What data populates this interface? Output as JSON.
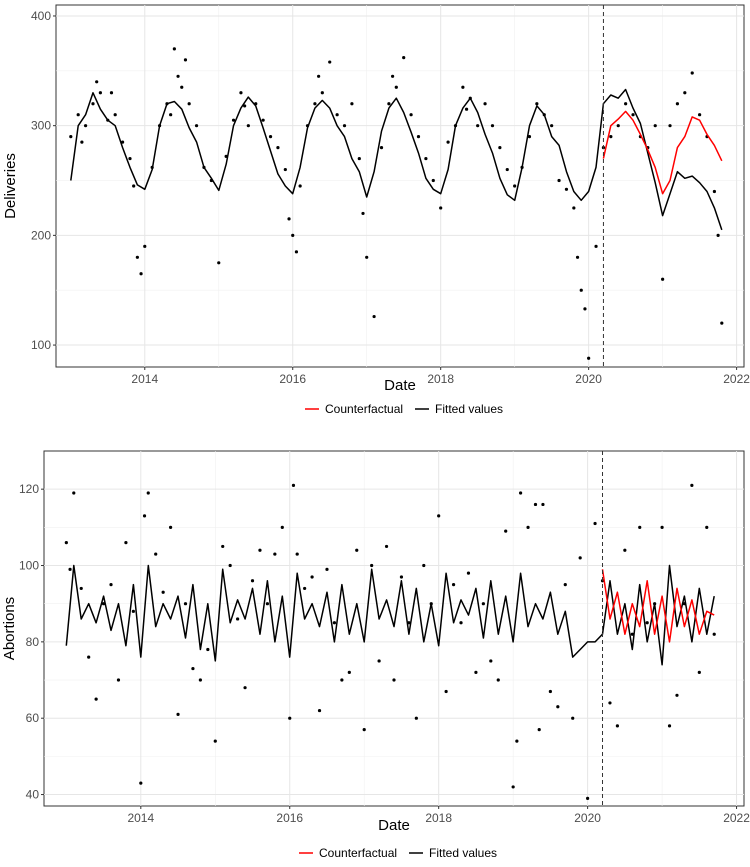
{
  "chart_data": [
    {
      "type": "line",
      "xlabel": "Date",
      "ylabel": "Deliveries",
      "xlim": [
        2012.8,
        2022.1
      ],
      "ylim": [
        80,
        410
      ],
      "x_ticks": [
        "2014",
        "2016",
        "2018",
        "2020",
        "2022"
      ],
      "y_ticks": [
        "100",
        "200",
        "300",
        "400"
      ],
      "grid": true,
      "intervention_line_x": 2020.2,
      "legend": {
        "position": "bottom",
        "entries": [
          "Counterfactual",
          "Fitted values"
        ]
      },
      "colors": {
        "Counterfactual": "#ff0000",
        "Fitted values": "#000000",
        "points": "#000000"
      },
      "series": [
        {
          "name": "Fitted values",
          "x": [
            2013.0,
            2013.1,
            2013.2,
            2013.3,
            2013.4,
            2013.5,
            2013.6,
            2013.7,
            2013.8,
            2013.9,
            2014.0,
            2014.1,
            2014.2,
            2014.3,
            2014.4,
            2014.5,
            2014.6,
            2014.7,
            2014.8,
            2014.9,
            2015.0,
            2015.1,
            2015.2,
            2015.3,
            2015.4,
            2015.5,
            2015.6,
            2015.7,
            2015.8,
            2015.9,
            2016.0,
            2016.1,
            2016.2,
            2016.3,
            2016.4,
            2016.5,
            2016.6,
            2016.7,
            2016.8,
            2016.9,
            2017.0,
            2017.1,
            2017.2,
            2017.3,
            2017.4,
            2017.5,
            2017.6,
            2017.7,
            2017.8,
            2017.9,
            2018.0,
            2018.1,
            2018.2,
            2018.3,
            2018.4,
            2018.5,
            2018.6,
            2018.7,
            2018.8,
            2018.9,
            2019.0,
            2019.1,
            2019.2,
            2019.3,
            2019.4,
            2019.5,
            2019.6,
            2019.7,
            2019.8,
            2019.9,
            2020.0,
            2020.1,
            2020.2,
            2020.3,
            2020.4,
            2020.5,
            2020.6,
            2020.7,
            2020.8,
            2020.9,
            2021.0,
            2021.1,
            2021.2,
            2021.3,
            2021.4,
            2021.5,
            2021.6,
            2021.7,
            2021.8
          ],
          "values": [
            250,
            300,
            310,
            330,
            315,
            305,
            300,
            280,
            262,
            246,
            242,
            260,
            300,
            320,
            322,
            315,
            298,
            285,
            262,
            252,
            241,
            265,
            300,
            316,
            326,
            318,
            298,
            277,
            256,
            245,
            238,
            262,
            298,
            316,
            323,
            316,
            300,
            290,
            270,
            258,
            235,
            258,
            295,
            316,
            325,
            312,
            294,
            275,
            252,
            242,
            238,
            260,
            300,
            316,
            325,
            312,
            292,
            275,
            252,
            237,
            232,
            262,
            300,
            318,
            310,
            290,
            282,
            258,
            240,
            232,
            240,
            262,
            320,
            328,
            325,
            333,
            316,
            302,
            275,
            248,
            218,
            238,
            258,
            252,
            254,
            248,
            240,
            225,
            205
          ]
        },
        {
          "name": "Counterfactual",
          "x": [
            2020.2,
            2020.3,
            2020.4,
            2020.5,
            2020.6,
            2020.7,
            2020.8,
            2020.9,
            2021.0,
            2021.1,
            2021.2,
            2021.3,
            2021.4,
            2021.5,
            2021.6,
            2021.7,
            2021.8
          ],
          "values": [
            270,
            300,
            306,
            313,
            305,
            292,
            278,
            262,
            238,
            250,
            280,
            290,
            308,
            305,
            292,
            282,
            268
          ]
        }
      ],
      "points": {
        "x": [
          2013.0,
          2013.1,
          2013.15,
          2013.2,
          2013.3,
          2013.35,
          2013.4,
          2013.5,
          2013.55,
          2013.6,
          2013.7,
          2013.8,
          2013.85,
          2013.9,
          2013.95,
          2014.0,
          2014.1,
          2014.2,
          2014.3,
          2014.35,
          2014.4,
          2014.45,
          2014.5,
          2014.55,
          2014.6,
          2014.7,
          2014.8,
          2014.9,
          2015.0,
          2015.1,
          2015.2,
          2015.3,
          2015.35,
          2015.4,
          2015.5,
          2015.6,
          2015.7,
          2015.8,
          2015.9,
          2015.95,
          2016.0,
          2016.05,
          2016.1,
          2016.2,
          2016.3,
          2016.35,
          2016.4,
          2016.5,
          2016.6,
          2016.7,
          2016.8,
          2016.9,
          2016.95,
          2017.0,
          2017.1,
          2017.2,
          2017.3,
          2017.35,
          2017.4,
          2017.5,
          2017.6,
          2017.7,
          2017.8,
          2017.9,
          2018.0,
          2018.1,
          2018.2,
          2018.3,
          2018.35,
          2018.4,
          2018.5,
          2018.6,
          2018.7,
          2018.8,
          2018.9,
          2019.0,
          2019.1,
          2019.2,
          2019.3,
          2019.4,
          2019.5,
          2019.6,
          2019.7,
          2019.8,
          2019.85,
          2019.9,
          2019.95,
          2020.0,
          2020.1,
          2020.2,
          2020.3,
          2020.4,
          2020.5,
          2020.6,
          2020.7,
          2020.8,
          2020.9,
          2021.0,
          2021.1,
          2021.2,
          2021.3,
          2021.4,
          2021.5,
          2021.6,
          2021.7,
          2021.75,
          2021.8
        ],
        "y": [
          290,
          310,
          285,
          300,
          320,
          340,
          330,
          305,
          330,
          310,
          285,
          270,
          245,
          180,
          165,
          190,
          262,
          300,
          320,
          310,
          370,
          345,
          335,
          360,
          320,
          300,
          262,
          250,
          175,
          272,
          305,
          330,
          318,
          300,
          320,
          305,
          290,
          280,
          260,
          215,
          200,
          185,
          245,
          300,
          320,
          345,
          330,
          358,
          310,
          300,
          320,
          270,
          220,
          180,
          126,
          280,
          320,
          345,
          335,
          362,
          310,
          290,
          270,
          250,
          225,
          285,
          300,
          335,
          315,
          325,
          300,
          320,
          300,
          280,
          260,
          245,
          262,
          290,
          320,
          310,
          300,
          250,
          242,
          225,
          180,
          150,
          133,
          88,
          190,
          280,
          290,
          300,
          320,
          310,
          290,
          280,
          300,
          160,
          300,
          320,
          330,
          348,
          310,
          290,
          240,
          200,
          120
        ]
      }
    },
    {
      "type": "line",
      "xlabel": "Date",
      "ylabel": "Abortions",
      "xlim": [
        2012.7,
        2022.1
      ],
      "ylim": [
        37,
        130
      ],
      "x_ticks": [
        "2014",
        "2016",
        "2018",
        "2020",
        "2022"
      ],
      "y_ticks": [
        "40",
        "60",
        "80",
        "100",
        "120"
      ],
      "grid": true,
      "intervention_line_x": 2020.2,
      "legend": {
        "position": "bottom",
        "entries": [
          "Counterfactual",
          "Fitted values"
        ]
      },
      "colors": {
        "Counterfactual": "#ff0000",
        "Fitted values": "#000000",
        "points": "#000000"
      },
      "series": [
        {
          "name": "Fitted values",
          "x": [
            2013.0,
            2013.1,
            2013.2,
            2013.3,
            2013.4,
            2013.5,
            2013.6,
            2013.7,
            2013.8,
            2013.9,
            2014.0,
            2014.1,
            2014.2,
            2014.3,
            2014.4,
            2014.5,
            2014.6,
            2014.7,
            2014.8,
            2014.9,
            2015.0,
            2015.1,
            2015.2,
            2015.3,
            2015.4,
            2015.5,
            2015.6,
            2015.7,
            2015.8,
            2015.9,
            2016.0,
            2016.1,
            2016.2,
            2016.3,
            2016.4,
            2016.5,
            2016.6,
            2016.7,
            2016.8,
            2016.9,
            2017.0,
            2017.1,
            2017.2,
            2017.3,
            2017.4,
            2017.5,
            2017.6,
            2017.7,
            2017.8,
            2017.9,
            2018.0,
            2018.1,
            2018.2,
            2018.3,
            2018.4,
            2018.5,
            2018.6,
            2018.7,
            2018.8,
            2018.9,
            2019.0,
            2019.1,
            2019.2,
            2019.3,
            2019.4,
            2019.5,
            2019.6,
            2019.7,
            2019.8,
            2019.9,
            2020.0,
            2020.1,
            2020.2,
            2020.3,
            2020.4,
            2020.5,
            2020.6,
            2020.7,
            2020.8,
            2020.9,
            2021.0,
            2021.1,
            2021.2,
            2021.3,
            2021.4,
            2021.5,
            2021.6,
            2021.7
          ],
          "values": [
            79,
            100,
            86,
            90,
            85,
            92,
            83,
            90,
            79,
            95,
            76,
            100,
            84,
            90,
            86,
            92,
            81,
            95,
            78,
            90,
            75,
            99,
            85,
            91,
            86,
            94,
            82,
            96,
            80,
            92,
            76,
            98,
            86,
            90,
            84,
            93,
            80,
            95,
            82,
            90,
            80,
            99,
            86,
            91,
            84,
            96,
            82,
            94,
            80,
            90,
            79,
            98,
            85,
            91,
            87,
            94,
            81,
            96,
            82,
            92,
            80,
            98,
            84,
            90,
            86,
            93,
            82,
            88,
            76,
            78,
            80,
            80,
            82,
            96,
            82,
            90,
            78,
            95,
            80,
            90,
            74,
            100,
            84,
            92,
            80,
            94,
            82,
            92
          ]
        },
        {
          "name": "Counterfactual",
          "x": [
            2020.2,
            2020.3,
            2020.4,
            2020.5,
            2020.6,
            2020.7,
            2020.8,
            2020.9,
            2021.0,
            2021.1,
            2021.2,
            2021.3,
            2021.4,
            2021.5,
            2021.6,
            2021.7
          ],
          "values": [
            99,
            86,
            93,
            82,
            90,
            84,
            96,
            82,
            92,
            80,
            94,
            84,
            91,
            82,
            88,
            87
          ]
        }
      ],
      "points": {
        "x": [
          2013.0,
          2013.05,
          2013.1,
          2013.2,
          2013.3,
          2013.4,
          2013.5,
          2013.6,
          2013.7,
          2013.8,
          2013.9,
          2014.0,
          2014.05,
          2014.1,
          2014.2,
          2014.3,
          2014.4,
          2014.5,
          2014.6,
          2014.7,
          2014.8,
          2014.9,
          2015.0,
          2015.1,
          2015.2,
          2015.3,
          2015.4,
          2015.5,
          2015.6,
          2015.7,
          2015.8,
          2015.9,
          2016.0,
          2016.05,
          2016.1,
          2016.2,
          2016.3,
          2016.4,
          2016.5,
          2016.6,
          2016.7,
          2016.8,
          2016.9,
          2017.0,
          2017.1,
          2017.2,
          2017.3,
          2017.4,
          2017.5,
          2017.6,
          2017.7,
          2017.8,
          2017.9,
          2018.0,
          2018.1,
          2018.2,
          2018.3,
          2018.4,
          2018.5,
          2018.6,
          2018.7,
          2018.8,
          2018.9,
          2019.0,
          2019.05,
          2019.1,
          2019.2,
          2019.3,
          2019.35,
          2019.4,
          2019.5,
          2019.6,
          2019.7,
          2019.8,
          2019.9,
          2020.0,
          2020.1,
          2020.2,
          2020.3,
          2020.4,
          2020.5,
          2020.6,
          2020.7,
          2020.8,
          2020.9,
          2021.0,
          2021.1,
          2021.2,
          2021.3,
          2021.4,
          2021.5,
          2021.6,
          2021.7
        ],
        "y": [
          106,
          99,
          119,
          94,
          76,
          65,
          90,
          95,
          70,
          106,
          88,
          43,
          113,
          119,
          103,
          93,
          110,
          61,
          90,
          73,
          70,
          78,
          54,
          105,
          100,
          86,
          68,
          96,
          104,
          90,
          103,
          110,
          60,
          121,
          103,
          94,
          97,
          62,
          99,
          85,
          70,
          72,
          104,
          57,
          100,
          75,
          105,
          70,
          97,
          85,
          60,
          100,
          90,
          113,
          67,
          95,
          85,
          98,
          72,
          90,
          75,
          70,
          109,
          42,
          54,
          119,
          110,
          116,
          57,
          116,
          67,
          63,
          95,
          60,
          102,
          39,
          111,
          96,
          64,
          58,
          104,
          82,
          110,
          85,
          90,
          110,
          58,
          66,
          90,
          121,
          72,
          110,
          82
        ]
      }
    }
  ]
}
